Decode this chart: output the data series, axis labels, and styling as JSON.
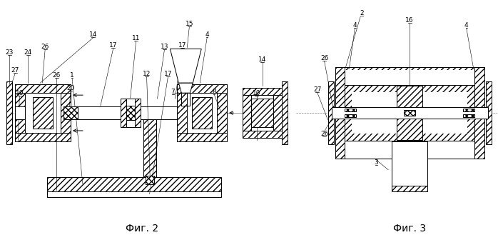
{
  "fig2_label": "Фиг. 2",
  "fig3_label": "Фиг. 3",
  "bg_color": "#ffffff",
  "figsize": [
    6.98,
    3.43
  ],
  "dpi": 100
}
